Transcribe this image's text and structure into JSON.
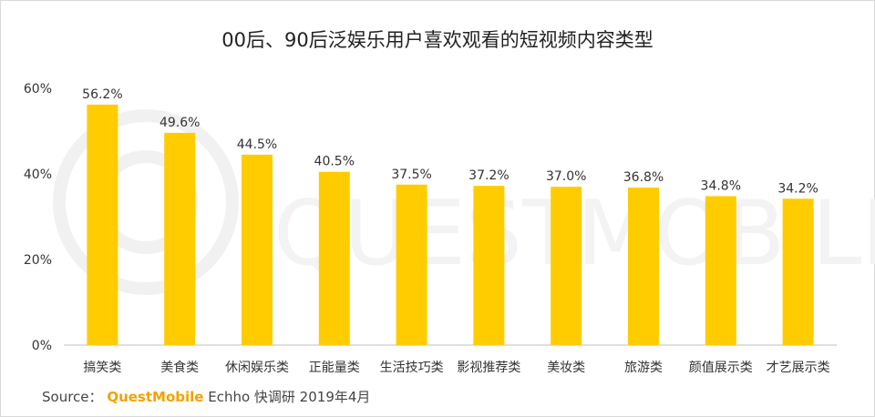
{
  "chart_data": {
    "type": "bar",
    "title": "00后、90后泛娱乐用户喜欢观看的短视频内容类型",
    "categories": [
      "搞笑类",
      "美食类",
      "休闲娱乐类",
      "正能量类",
      "生活技巧类",
      "影视推荐类",
      "美妆类",
      "旅游类",
      "颜值展示类",
      "才艺展示类"
    ],
    "values": [
      56.2,
      49.6,
      44.5,
      40.5,
      37.5,
      37.2,
      37.0,
      36.8,
      34.8,
      34.2
    ],
    "value_labels": [
      "56.2%",
      "49.6%",
      "44.5%",
      "40.5%",
      "37.5%",
      "37.2%",
      "37.0%",
      "36.8%",
      "34.8%",
      "34.2%"
    ],
    "ylim": [
      0,
      60
    ],
    "yticks": [
      0,
      20,
      40,
      60
    ],
    "ytick_labels": [
      "0%",
      "20%",
      "40%",
      "60%"
    ],
    "xlabel": "",
    "ylabel": "",
    "grid": false,
    "bar_color": "#ffcc00"
  },
  "source": {
    "prefix": "Source：",
    "brand": "QuestMobile",
    "rest": " Echho 快调研 2019年4月"
  },
  "watermark": "QUESTMOBILE",
  "colors": {
    "bar": "#ffcc00",
    "brand": "#f5a100"
  }
}
